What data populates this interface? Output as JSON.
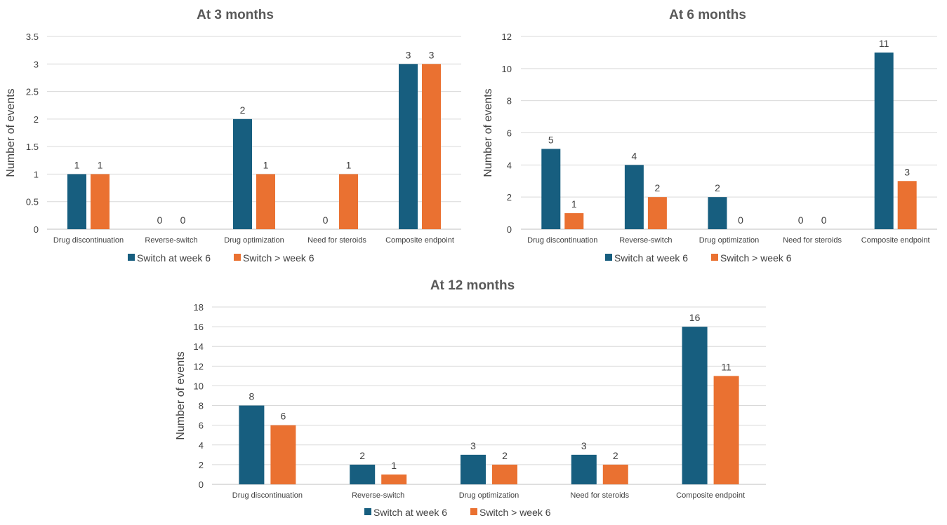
{
  "colors": {
    "series1": "#175e7f",
    "series2": "#ea7131"
  },
  "chart_data": [
    {
      "type": "bar",
      "title": "At 3 months",
      "ylabel": "Number of events",
      "xlabel": "",
      "categories": [
        "Drug discontinuation",
        "Reverse-switch",
        "Drug optimization",
        "Need for steroids",
        "Composite endpoint"
      ],
      "series": [
        {
          "name": "Switch at week 6",
          "values": [
            1,
            0,
            2,
            0,
            3
          ]
        },
        {
          "name": "Switch > week 6",
          "values": [
            1,
            0,
            1,
            1,
            3
          ]
        }
      ],
      "ylim": [
        0,
        3.5
      ],
      "yticks": [
        0,
        0.5,
        1,
        1.5,
        2,
        2.5,
        3,
        3.5
      ],
      "ytick_labels": [
        "0",
        "0.5",
        "1",
        "1.5",
        "2",
        "2.5",
        "3",
        "3.5"
      ],
      "grid": true,
      "legend": "bottom"
    },
    {
      "type": "bar",
      "title": "At 6 months",
      "ylabel": "Number of events",
      "xlabel": "",
      "categories": [
        "Drug discontinuation",
        "Reverse-switch",
        "Drug optimization",
        "Need for steroids",
        "Composite endpoint"
      ],
      "series": [
        {
          "name": "Switch at week 6",
          "values": [
            5,
            4,
            2,
            0,
            11
          ]
        },
        {
          "name": "Switch > week 6",
          "values": [
            1,
            2,
            0,
            0,
            3
          ]
        }
      ],
      "ylim": [
        0,
        12
      ],
      "yticks": [
        0,
        2,
        4,
        6,
        8,
        10,
        12
      ],
      "ytick_labels": [
        "0",
        "2",
        "4",
        "6",
        "8",
        "10",
        "12"
      ],
      "grid": true,
      "legend": "bottom"
    },
    {
      "type": "bar",
      "title": "At 12 months",
      "ylabel": "Number of events",
      "xlabel": "",
      "categories": [
        "Drug discontinuation",
        "Reverse-switch",
        "Drug optimization",
        "Need for steroids",
        "Composite endpoint"
      ],
      "series": [
        {
          "name": "Switch at week 6",
          "values": [
            8,
            2,
            3,
            3,
            16
          ]
        },
        {
          "name": "Switch > week 6",
          "values": [
            6,
            1,
            2,
            2,
            11
          ]
        }
      ],
      "ylim": [
        0,
        18
      ],
      "yticks": [
        0,
        2,
        4,
        6,
        8,
        10,
        12,
        14,
        16,
        18
      ],
      "ytick_labels": [
        "0",
        "2",
        "4",
        "6",
        "8",
        "10",
        "12",
        "14",
        "16",
        "18"
      ],
      "grid": true,
      "legend": "bottom"
    }
  ]
}
